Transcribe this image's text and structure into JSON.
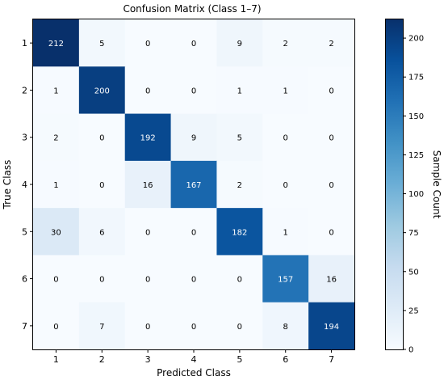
{
  "chart_data": {
    "type": "heatmap",
    "title": "Confusion Matrix (Class 1–7)",
    "xlabel": "Predicted Class",
    "ylabel": "True Class",
    "x_categories": [
      "1",
      "2",
      "3",
      "4",
      "5",
      "6",
      "7"
    ],
    "y_categories": [
      "1",
      "2",
      "3",
      "4",
      "5",
      "6",
      "7"
    ],
    "matrix": [
      [
        212,
        5,
        0,
        0,
        9,
        2,
        2
      ],
      [
        1,
        200,
        0,
        0,
        1,
        1,
        0
      ],
      [
        2,
        0,
        192,
        9,
        5,
        0,
        0
      ],
      [
        1,
        0,
        16,
        167,
        2,
        0,
        0
      ],
      [
        30,
        6,
        0,
        0,
        182,
        1,
        0
      ],
      [
        0,
        0,
        0,
        0,
        0,
        157,
        16
      ],
      [
        0,
        7,
        0,
        0,
        0,
        8,
        194
      ]
    ],
    "colormap": "Blues",
    "color_low": "#f7fbff",
    "color_high": "#08306b",
    "text_color_light": "#ffffff",
    "text_color_dark": "#000000",
    "colorbar": {
      "label": "Sample Count",
      "range": [
        0,
        212
      ],
      "ticks": [
        0,
        25,
        50,
        75,
        100,
        125,
        150,
        175,
        200
      ]
    }
  }
}
